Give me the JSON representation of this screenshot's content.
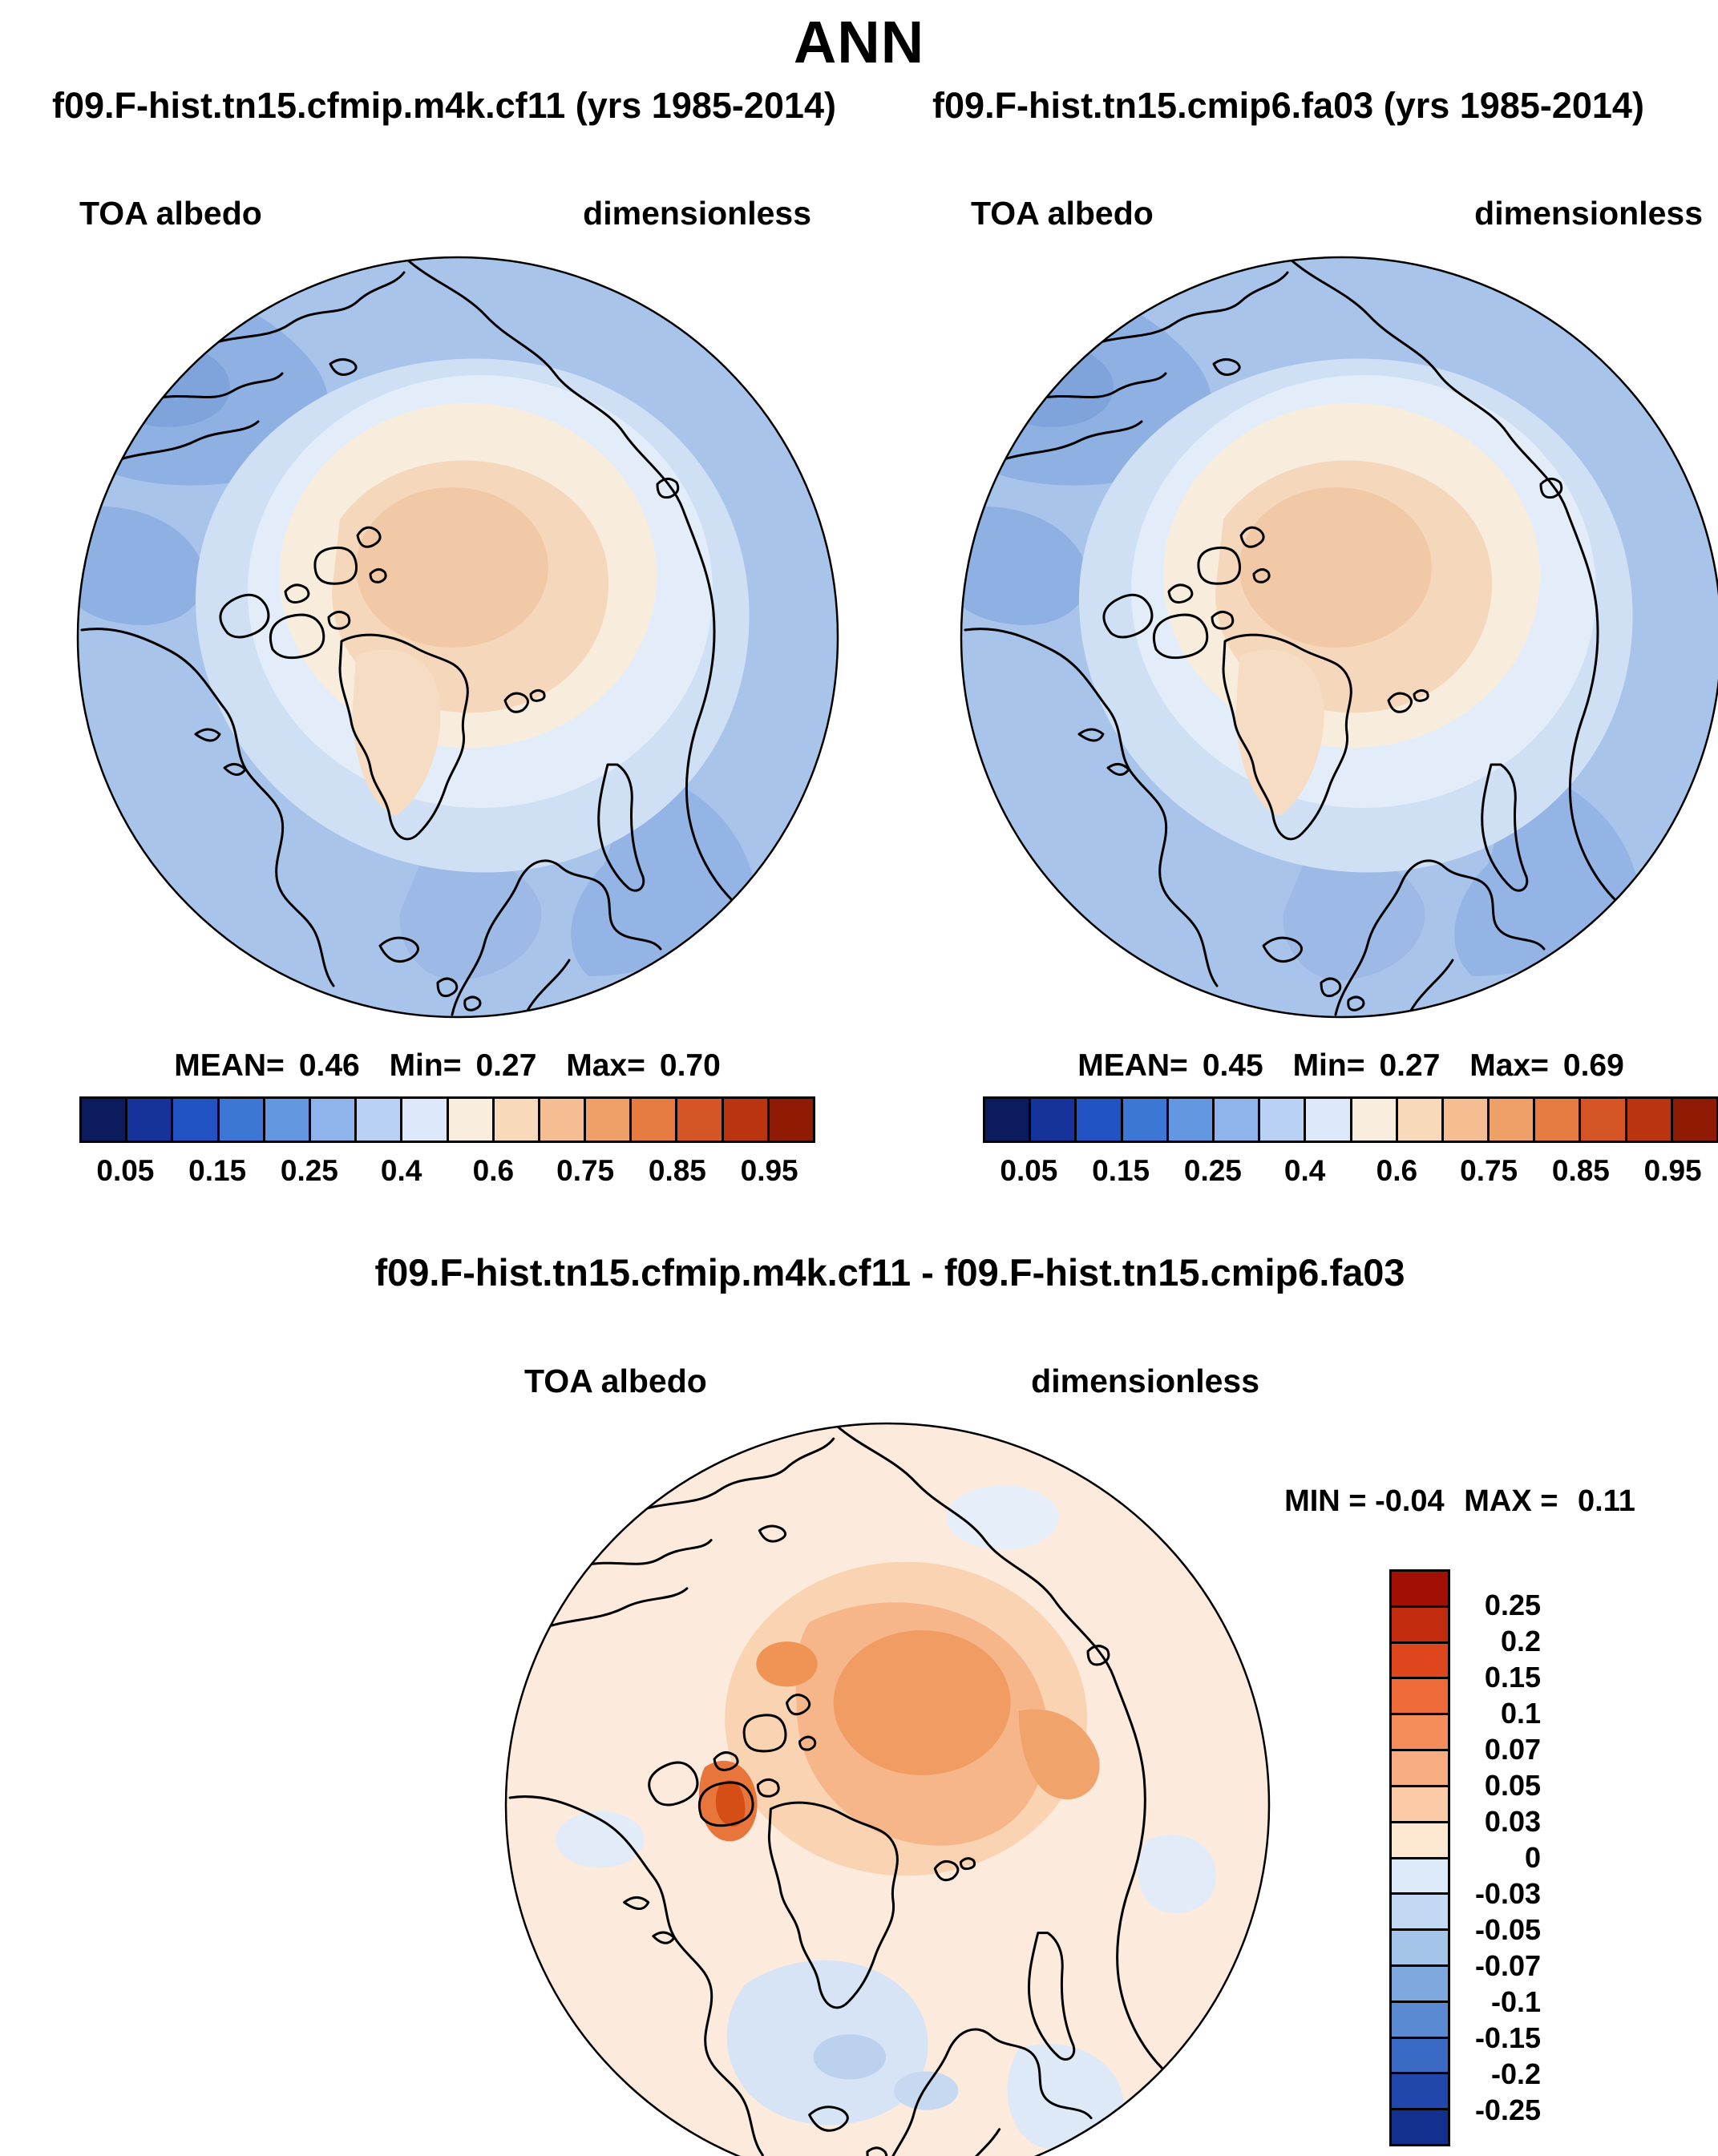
{
  "title": "ANN",
  "panels": {
    "left": {
      "title": "f09.F-hist.tn15.cfmip.m4k.cf11 (yrs 1985-2014)",
      "var_label": "TOA albedo",
      "units": "dimensionless",
      "mean_label": "MEAN=",
      "mean": "0.46",
      "min_label": "Min=",
      "min": "0.27",
      "max_label": "Max=",
      "max": "0.70"
    },
    "right": {
      "title": "f09.F-hist.tn15.cmip6.fa03 (yrs 1985-2014)",
      "var_label": "TOA albedo",
      "units": "dimensionless",
      "mean_label": "MEAN=",
      "mean": "0.45",
      "min_label": "Min=",
      "min": "0.27",
      "max_label": "Max=",
      "max": "0.69"
    },
    "diff": {
      "title": "f09.F-hist.tn15.cfmip.m4k.cf11 - f09.F-hist.tn15.cmip6.fa03",
      "var_label": "TOA albedo",
      "units": "dimensionless",
      "min_label": "MIN =",
      "min": "-0.04",
      "max_label": "MAX =",
      "max": "0.11"
    }
  },
  "albedo_colorbar": {
    "colors": [
      "#0c1a5e",
      "#15339b",
      "#2153c2",
      "#3c77d6",
      "#6497e2",
      "#8fb4ec",
      "#b8d1f4",
      "#dde9fa",
      "#f9eddd",
      "#f8d9ba",
      "#f4bd92",
      "#ef9f68",
      "#e67c42",
      "#d65526",
      "#ba3412",
      "#8f1b04"
    ],
    "ticks": [
      "0.05",
      "0.15",
      "0.25",
      "0.4",
      "0.6",
      "0.75",
      "0.85",
      "0.95"
    ],
    "tick_positions_pct": [
      6.25,
      18.75,
      31.25,
      43.75,
      56.25,
      68.75,
      81.25,
      93.75
    ]
  },
  "diff_colorbar": {
    "colors": [
      "#a21005",
      "#c22b0e",
      "#de471d",
      "#ee6a38",
      "#f48c5b",
      "#f7ad80",
      "#fbcaa6",
      "#fde8d2",
      "#ddeaf9",
      "#c3d8f2",
      "#a4c4ea",
      "#7fa9de",
      "#5a8ad1",
      "#3a6ac3",
      "#2147ad",
      "#14308f"
    ],
    "ticks": [
      "0.25",
      "0.2",
      "0.15",
      "0.1",
      "0.07",
      "0.05",
      "0.03",
      "0",
      "-0.03",
      "-0.05",
      "-0.07",
      "-0.1",
      "-0.15",
      "-0.2",
      "-0.25"
    ]
  },
  "map_colors": {
    "ocean_blue": "#a9c4ea",
    "deep_ocean_blue": "#8fb0e2",
    "pale_blue": "#cfe0f5",
    "ice_cream": "#f8ecdd",
    "ice_peach": "#f5d7bb",
    "diff_base": "#fcebdc",
    "diff_orange": "#f6b68a",
    "diff_blue": "#d7e4f5",
    "coastline": "#000000"
  },
  "chart_data": [
    {
      "type": "heatmap",
      "projection": "polar_stereographic",
      "region": "Arctic",
      "title": "f09.F-hist.tn15.cfmip.m4k.cf11 (yrs 1985-2014)",
      "variable": "TOA albedo",
      "units": "dimensionless",
      "stats": {
        "mean": 0.46,
        "min": 0.27,
        "max": 0.7
      },
      "colorbar_ticks": [
        0.05,
        0.15,
        0.25,
        0.4,
        0.6,
        0.75,
        0.85,
        0.95
      ],
      "colorbar_orientation": "horizontal",
      "palette": "blue-white-red",
      "legend_position": "bottom"
    },
    {
      "type": "heatmap",
      "projection": "polar_stereographic",
      "region": "Arctic",
      "title": "f09.F-hist.tn15.cmip6.fa03 (yrs 1985-2014)",
      "variable": "TOA albedo",
      "units": "dimensionless",
      "stats": {
        "mean": 0.45,
        "min": 0.27,
        "max": 0.69
      },
      "colorbar_ticks": [
        0.05,
        0.15,
        0.25,
        0.4,
        0.6,
        0.75,
        0.85,
        0.95
      ],
      "colorbar_orientation": "horizontal",
      "palette": "blue-white-red",
      "legend_position": "bottom"
    },
    {
      "type": "heatmap",
      "projection": "polar_stereographic",
      "region": "Arctic",
      "title": "f09.F-hist.tn15.cfmip.m4k.cf11 - f09.F-hist.tn15.cmip6.fa03",
      "variable": "TOA albedo",
      "units": "dimensionless",
      "stats": {
        "min": -0.04,
        "max": 0.11
      },
      "colorbar_ticks": [
        0.25,
        0.2,
        0.15,
        0.1,
        0.07,
        0.05,
        0.03,
        0,
        -0.03,
        -0.05,
        -0.07,
        -0.1,
        -0.15,
        -0.2,
        -0.25
      ],
      "colorbar_orientation": "vertical",
      "palette": "red-white-blue",
      "legend_position": "right"
    }
  ]
}
